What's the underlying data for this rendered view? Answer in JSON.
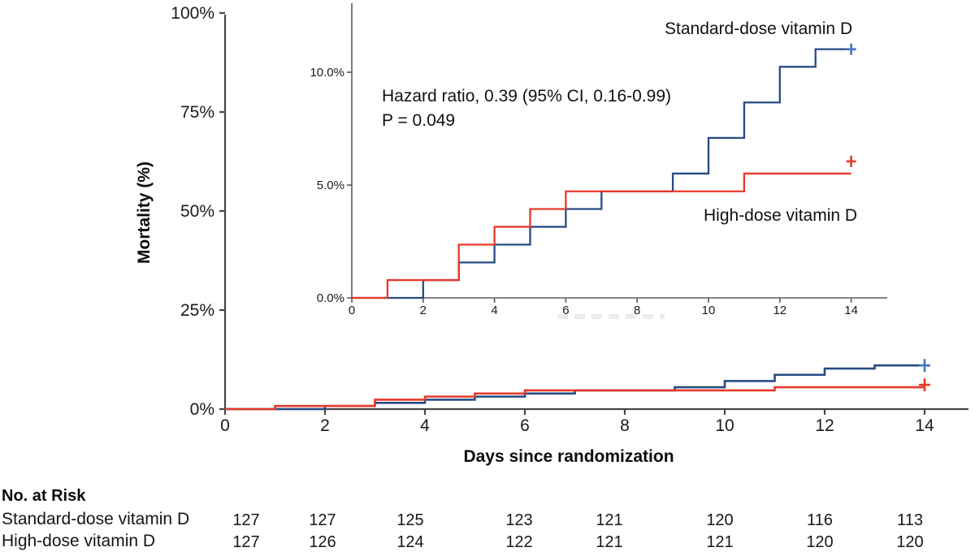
{
  "chart_data": {
    "type": "line",
    "subtype": "kaplan-meier-step",
    "title": "",
    "xlabel": "Days since randomization",
    "ylabel": "Mortality (%)",
    "main_axis": {
      "xlim": [
        0,
        14.9
      ],
      "ylim": [
        0,
        100
      ],
      "xticks": [
        0,
        2,
        4,
        6,
        8,
        10,
        12,
        14
      ],
      "xtick_labels": [
        "0",
        "2",
        "4",
        "6",
        "8",
        "10",
        "12",
        "14"
      ],
      "yticks": [
        0,
        25,
        50,
        75,
        100
      ],
      "ytick_labels": [
        "0%",
        "25%",
        "50%",
        "75%",
        "100%"
      ],
      "grid": false
    },
    "inset_axis": {
      "xlim": [
        0,
        15
      ],
      "ylim": [
        0,
        11.9
      ],
      "xticks": [
        0,
        2,
        4,
        6,
        8,
        10,
        12,
        14
      ],
      "xtick_labels": [
        "0",
        "2",
        "4",
        "6",
        "8",
        "10",
        "12",
        "14"
      ],
      "yticks": [
        0,
        5,
        10
      ],
      "ytick_labels": [
        "0.0%",
        "5.0%",
        "10.0%"
      ],
      "grid": false
    },
    "series": [
      {
        "name": "Standard-dose vitamin D",
        "color": "#264b84",
        "censor_color": "#4472c4",
        "steps": [
          [
            0,
            0
          ],
          [
            2,
            0.79
          ],
          [
            3,
            1.57
          ],
          [
            4,
            2.36
          ],
          [
            5,
            3.15
          ],
          [
            6,
            3.94
          ],
          [
            7,
            4.72
          ],
          [
            9,
            5.51
          ],
          [
            10,
            7.09
          ],
          [
            11,
            8.66
          ],
          [
            12,
            10.24
          ],
          [
            13,
            11.02
          ]
        ],
        "end_day": 14,
        "censor_day": 14,
        "censor_pct": 11.02
      },
      {
        "name": "High-dose vitamin D",
        "color": "#e63a2b",
        "censor_color": "#e8392b",
        "steps": [
          [
            0,
            0
          ],
          [
            1,
            0.79
          ],
          [
            3,
            2.36
          ],
          [
            4,
            3.15
          ],
          [
            5,
            3.94
          ],
          [
            6,
            4.72
          ],
          [
            11,
            5.51
          ]
        ],
        "end_day": 14,
        "censor_day": 14,
        "censor_pct": 5.51
      }
    ],
    "annotations": {
      "hazard_ratio": "Hazard ratio, 0.39 (95% CI, 0.16-0.99)",
      "p_value": "P = 0.049"
    },
    "legend_position": "inline-labels"
  },
  "risk_table": {
    "header": "No. at Risk",
    "days": [
      0,
      2,
      4,
      6,
      8,
      10,
      12,
      14
    ],
    "rows": [
      {
        "label": "Standard-dose vitamin D",
        "counts": [
          "127",
          "127",
          "125",
          "123",
          "121",
          "120",
          "116",
          "113"
        ]
      },
      {
        "label": "High-dose vitamin D",
        "counts": [
          "127",
          "126",
          "124",
          "122",
          "121",
          "121",
          "120",
          "120"
        ]
      }
    ]
  },
  "colors": {
    "standard_dose_line": "#264b84",
    "high_dose_line": "#e63a2b",
    "axis": "#4d4f52",
    "text": "#111111"
  }
}
